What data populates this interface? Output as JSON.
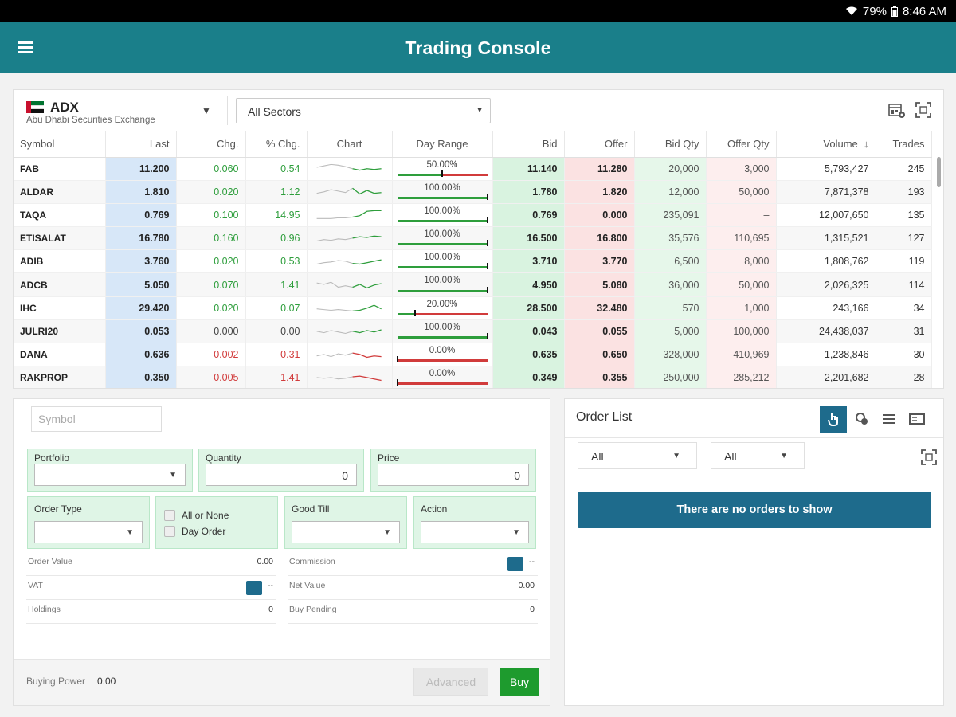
{
  "status_bar": {
    "battery": "79%",
    "time": "8:46 AM"
  },
  "app": {
    "title": "Trading Console"
  },
  "toolbar": {
    "exchange_code": "ADX",
    "exchange_name": "Abu Dhabi Securities Exchange",
    "sector": "All Sectors",
    "caret": "▼"
  },
  "colors": {
    "app_bar": "#1a7f8a",
    "up": "#2e9e3c",
    "down": "#d13b3b",
    "accent": "#1e6b8c",
    "buy": "#1e9b2e"
  },
  "watchlist": {
    "columns": [
      "Symbol",
      "Last",
      "Chg.",
      "% Chg.",
      "Chart",
      "Day Range",
      "Bid",
      "Offer",
      "Bid Qty",
      "Offer Qty",
      "Volume",
      "Trades"
    ],
    "sort_indicator": "↓",
    "rows": [
      {
        "symbol": "FAB",
        "last": "11.200",
        "chg": "0.060",
        "pchg": "0.54",
        "dir": "up",
        "spark": [
          7,
          5,
          3,
          4,
          6,
          9,
          11,
          9,
          10,
          9
        ],
        "range_pct": "50.00%",
        "range": 0.5,
        "bid": "11.140",
        "offer": "11.280",
        "bid_qty": "20,000",
        "offer_qty": "3,000",
        "volume": "5,793,427",
        "trades": "245"
      },
      {
        "symbol": "ALDAR",
        "last": "1.810",
        "chg": "0.020",
        "pchg": "1.12",
        "dir": "up",
        "spark": [
          11,
          9,
          6,
          8,
          10,
          4,
          12,
          7,
          11,
          10
        ],
        "range_pct": "100.00%",
        "range": 1.0,
        "bid": "1.780",
        "offer": "1.820",
        "bid_qty": "12,000",
        "offer_qty": "50,000",
        "volume": "7,871,378",
        "trades": "193"
      },
      {
        "symbol": "TAQA",
        "last": "0.769",
        "chg": "0.100",
        "pchg": "14.95",
        "dir": "up",
        "spark": [
          14,
          14,
          14,
          13,
          13,
          12,
          10,
          4,
          3,
          3
        ],
        "range_pct": "100.00%",
        "range": 1.0,
        "bid": "0.769",
        "offer": "0.000",
        "bid_qty": "235,091",
        "offer_qty": "–",
        "volume": "12,007,650",
        "trades": "135"
      },
      {
        "symbol": "ETISALAT",
        "last": "16.780",
        "chg": "0.160",
        "pchg": "0.96",
        "dir": "up",
        "spark": [
          12,
          10,
          11,
          9,
          10,
          8,
          6,
          7,
          5,
          6
        ],
        "range_pct": "100.00%",
        "range": 1.0,
        "bid": "16.500",
        "offer": "16.800",
        "bid_qty": "35,576",
        "offer_qty": "110,695",
        "volume": "1,315,521",
        "trades": "127"
      },
      {
        "symbol": "ADIB",
        "last": "3.760",
        "chg": "0.020",
        "pchg": "0.53",
        "dir": "up",
        "spark": [
          12,
          10,
          9,
          7,
          8,
          11,
          12,
          10,
          8,
          6
        ],
        "range_pct": "100.00%",
        "range": 1.0,
        "bid": "3.710",
        "offer": "3.770",
        "bid_qty": "6,500",
        "offer_qty": "8,000",
        "volume": "1,808,762",
        "trades": "119"
      },
      {
        "symbol": "ADCB",
        "last": "5.050",
        "chg": "0.070",
        "pchg": "1.41",
        "dir": "up",
        "spark": [
          6,
          8,
          5,
          12,
          10,
          12,
          8,
          13,
          9,
          7
        ],
        "range_pct": "100.00%",
        "range": 1.0,
        "bid": "4.950",
        "offer": "5.080",
        "bid_qty": "36,000",
        "offer_qty": "50,000",
        "volume": "2,026,325",
        "trades": "114"
      },
      {
        "symbol": "IHC",
        "last": "29.420",
        "chg": "0.020",
        "pchg": "0.07",
        "dir": "up",
        "spark": [
          10,
          11,
          12,
          11,
          12,
          13,
          12,
          9,
          5,
          10
        ],
        "range_pct": "20.00%",
        "range": 0.2,
        "bid": "28.500",
        "offer": "32.480",
        "bid_qty": "570",
        "offer_qty": "1,000",
        "volume": "243,166",
        "trades": "34"
      },
      {
        "symbol": "JULRI20",
        "last": "0.053",
        "chg": "0.000",
        "pchg": "0.00",
        "dir": "flat",
        "spark": [
          9,
          11,
          8,
          10,
          12,
          9,
          11,
          8,
          10,
          7
        ],
        "range_pct": "100.00%",
        "range": 1.0,
        "bid": "0.043",
        "offer": "0.055",
        "bid_qty": "5,000",
        "offer_qty": "100,000",
        "volume": "24,438,037",
        "trades": "31"
      },
      {
        "symbol": "DANA",
        "last": "0.636",
        "chg": "-0.002",
        "pchg": "-0.31",
        "dir": "down",
        "spark": [
          10,
          8,
          11,
          7,
          9,
          6,
          8,
          12,
          10,
          11
        ],
        "range_pct": "0.00%",
        "range": 0.0,
        "bid": "0.635",
        "offer": "0.650",
        "bid_qty": "328,000",
        "offer_qty": "410,969",
        "volume": "1,238,846",
        "trades": "30"
      },
      {
        "symbol": "RAKPROP",
        "last": "0.350",
        "chg": "-0.005",
        "pchg": "-1.41",
        "dir": "down",
        "spark": [
          8,
          9,
          8,
          10,
          9,
          7,
          6,
          8,
          10,
          12
        ],
        "range_pct": "0.00%",
        "range": 0.0,
        "bid": "0.349",
        "offer": "0.355",
        "bid_qty": "250,000",
        "offer_qty": "285,212",
        "volume": "2,201,682",
        "trades": "28"
      }
    ]
  },
  "order_entry": {
    "symbol_placeholder": "Symbol",
    "portfolio_label": "Portfolio",
    "quantity_label": "Quantity",
    "quantity_value": "0",
    "price_label": "Price",
    "price_value": "0",
    "order_type_label": "Order Type",
    "all_or_none": "All or None",
    "day_order": "Day Order",
    "good_till_label": "Good Till",
    "action_label": "Action",
    "order_value_label": "Order Value",
    "order_value": "0.00",
    "commission_label": "Commission",
    "commission_value": "--",
    "vat_label": "VAT",
    "vat_value": "--",
    "net_value_label": "Net Value",
    "net_value": "0.00",
    "holdings_label": "Holdings",
    "holdings_value": "0",
    "buy_pending_label": "Buy Pending",
    "buy_pending_value": "0",
    "buying_power_label": "Buying Power",
    "buying_power_value": "0.00",
    "advanced_label": "Advanced",
    "buy_label": "Buy"
  },
  "order_list": {
    "title": "Order List",
    "filter1": "All",
    "filter2": "All",
    "empty_message": "There are no orders to show"
  }
}
